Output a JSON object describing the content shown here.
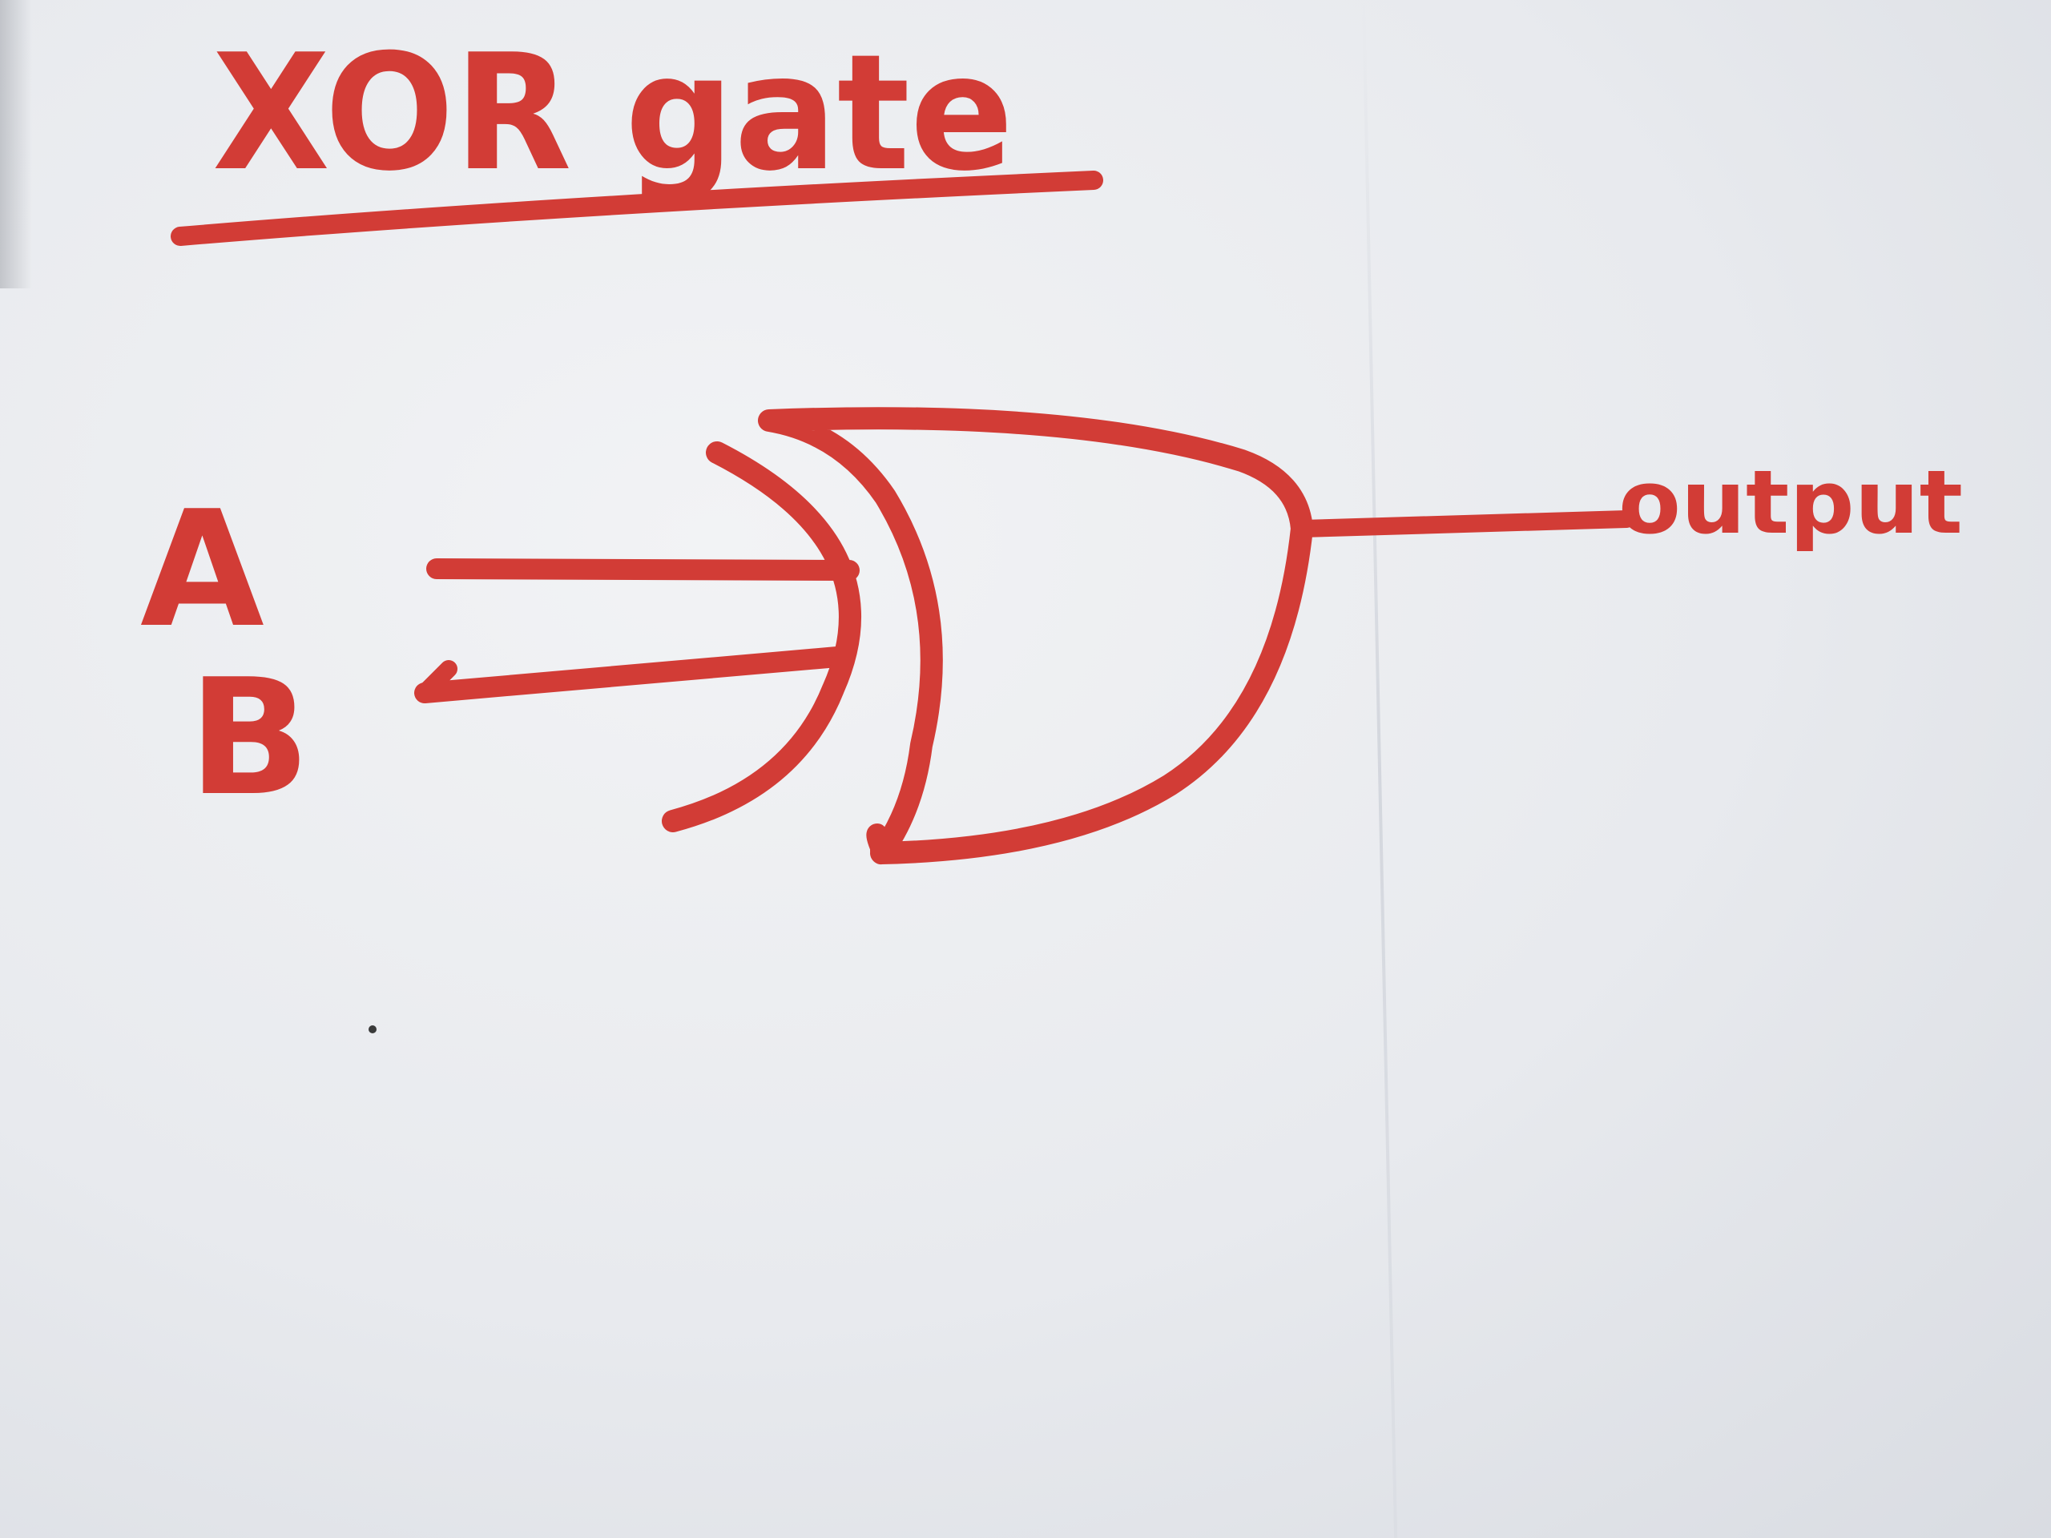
{
  "title": "XOR gate",
  "inputs": [
    {
      "label": "A"
    },
    {
      "label": "B"
    }
  ],
  "output": {
    "label": "output"
  },
  "colors": {
    "ink": "#d23c36",
    "paper": "#eceef1"
  }
}
